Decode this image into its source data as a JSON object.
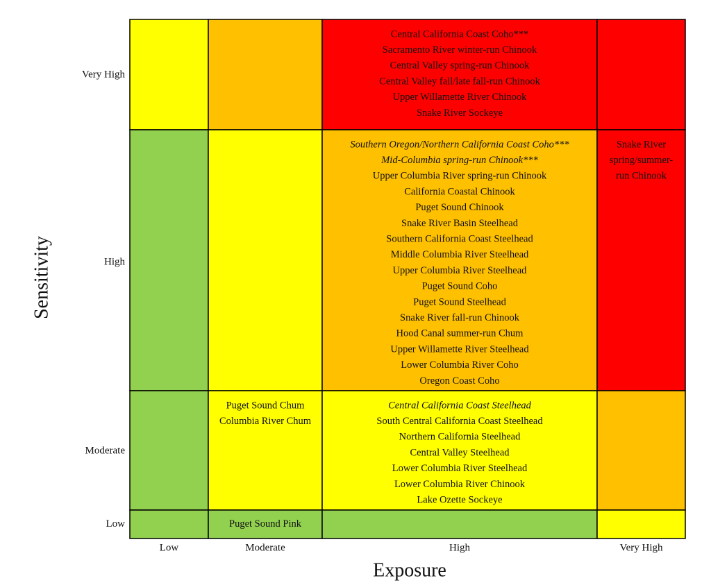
{
  "y_axis_title": "Sensitivity",
  "x_axis_title": "Exposure",
  "columns": [
    "Low",
    "Moderate",
    "High",
    "Very High"
  ],
  "rows": [
    {
      "label": "Very High",
      "cells": [
        {
          "color": "#ffff00",
          "lines": []
        },
        {
          "color": "#ffc000",
          "lines": []
        },
        {
          "color": "#ff0000",
          "lines": [
            {
              "text": "Central California Coast Coho***",
              "italic": false
            },
            {
              "text": "Sacramento River winter-run Chinook",
              "italic": false
            },
            {
              "text": "Central Valley spring-run Chinook",
              "italic": false
            },
            {
              "text": "Central Valley fall/late fall-run Chinook",
              "italic": false
            },
            {
              "text": "Upper Willamette River Chinook",
              "italic": false
            },
            {
              "text": "Snake River Sockeye",
              "italic": false
            }
          ]
        },
        {
          "color": "#ff0000",
          "lines": []
        }
      ]
    },
    {
      "label": "High",
      "cells": [
        {
          "color": "#92d050",
          "lines": []
        },
        {
          "color": "#ffff00",
          "lines": []
        },
        {
          "color": "#ffc000",
          "lines": [
            {
              "text": "Southern Oregon/Northern California Coast Coho***",
              "italic": true
            },
            {
              "text": "Mid-Columbia spring-run Chinook***",
              "italic": true
            },
            {
              "text": "Upper Columbia River spring-run Chinook",
              "italic": false
            },
            {
              "text": "California Coastal Chinook",
              "italic": false
            },
            {
              "text": "Puget Sound Chinook",
              "italic": false
            },
            {
              "text": "Snake River Basin Steelhead",
              "italic": false
            },
            {
              "text": "Southern California Coast Steelhead",
              "italic": false
            },
            {
              "text": "Middle Columbia River Steelhead",
              "italic": false
            },
            {
              "text": "Upper Columbia River Steelhead",
              "italic": false
            },
            {
              "text": "Puget Sound Coho",
              "italic": false
            },
            {
              "text": "Puget Sound Steelhead",
              "italic": false
            },
            {
              "text": "Snake River fall-run Chinook",
              "italic": false
            },
            {
              "text": "Hood Canal summer-run Chum",
              "italic": false
            },
            {
              "text": "Upper Willamette River Steelhead",
              "italic": false
            },
            {
              "text": "Lower Columbia River Coho",
              "italic": false
            },
            {
              "text": "Oregon Coast Coho",
              "italic": false
            }
          ]
        },
        {
          "color": "#ff0000",
          "lines": [
            {
              "text": "Snake River",
              "italic": false
            },
            {
              "text": "spring/summer-",
              "italic": false
            },
            {
              "text": "run Chinook",
              "italic": false
            }
          ]
        }
      ]
    },
    {
      "label": "Moderate",
      "cells": [
        {
          "color": "#92d050",
          "lines": []
        },
        {
          "color": "#ffff00",
          "lines": [
            {
              "text": "Puget Sound Chum",
              "italic": false
            },
            {
              "text": "Columbia River Chum",
              "italic": false
            }
          ]
        },
        {
          "color": "#ffff00",
          "lines": [
            {
              "text": "Central California Coast Steelhead",
              "italic": true
            },
            {
              "text": "South Central California Coast Steelhead",
              "italic": false
            },
            {
              "text": "Northern California Steelhead",
              "italic": false
            },
            {
              "text": "Central Valley Steelhead",
              "italic": false
            },
            {
              "text": "Lower Columbia River Steelhead",
              "italic": false
            },
            {
              "text": "Lower Columbia River Chinook",
              "italic": false
            },
            {
              "text": "Lake Ozette Sockeye",
              "italic": false
            }
          ]
        },
        {
          "color": "#ffc000",
          "lines": []
        }
      ]
    },
    {
      "label": "Low",
      "cells": [
        {
          "color": "#92d050",
          "lines": []
        },
        {
          "color": "#92d050",
          "lines": [
            {
              "text": "Puget Sound Pink",
              "italic": false
            }
          ]
        },
        {
          "color": "#92d050",
          "lines": []
        },
        {
          "color": "#ffff00",
          "lines": []
        }
      ]
    }
  ]
}
